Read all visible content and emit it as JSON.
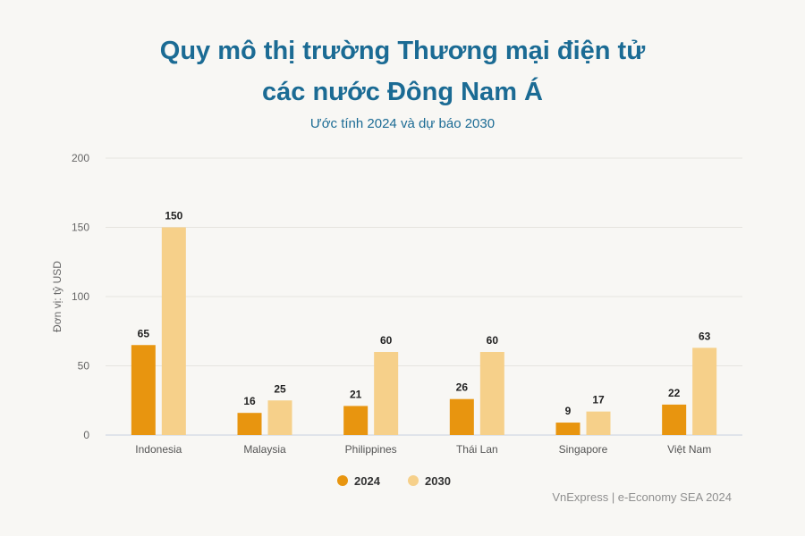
{
  "header": {
    "title_line1": "Quy mô thị trường Thương mại điện tử",
    "title_line2": "các nước Đông Nam Á",
    "subtitle": "Ước tính 2024 và dự báo 2030"
  },
  "source": "VnExpress | e-Economy SEA 2024",
  "colors": {
    "series_2024": "#e8950f",
    "series_2030": "#f6d08a",
    "title": "#1b6b94",
    "grid": "#e6e4df"
  },
  "chart_data": {
    "type": "bar",
    "title": "Quy mô thị trường Thương mại điện tử các nước Đông Nam Á",
    "subtitle": "Ước tính 2024 và dự báo 2030",
    "xlabel": "",
    "ylabel": "Đơn vị: tỷ USD",
    "ylim": [
      0,
      200
    ],
    "yticks": [
      0,
      50,
      100,
      150,
      200
    ],
    "grid": true,
    "legend_position": "bottom",
    "categories": [
      "Indonesia",
      "Malaysia",
      "Philippines",
      "Thái Lan",
      "Singapore",
      "Việt Nam"
    ],
    "series": [
      {
        "name": "2024",
        "values": [
          65,
          16,
          21,
          26,
          9,
          22
        ]
      },
      {
        "name": "2030",
        "values": [
          150,
          25,
          60,
          60,
          17,
          63
        ]
      }
    ]
  }
}
